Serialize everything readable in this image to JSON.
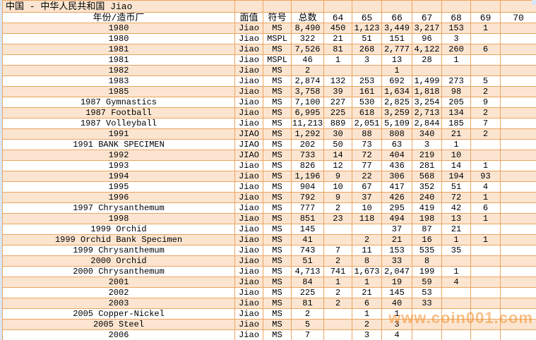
{
  "title": "中国 - 中华人民共和国 Jiao",
  "watermark": "www.coin001.com",
  "colors": {
    "border": "#ECA460",
    "row_peach": "#FCE5D0",
    "row_white": "#FFFFFF",
    "page_background": "#D9E6F3",
    "watermark": "#F29027",
    "text": "#000000"
  },
  "table": {
    "columns": [
      "年份/造币厂",
      "面值",
      "符号",
      "总数",
      "64",
      "65",
      "66",
      "67",
      "68",
      "69",
      "70"
    ],
    "rows": [
      [
        "1980",
        "Jiao",
        "MS",
        "8,490",
        "450",
        "1,123",
        "3,449",
        "3,217",
        "153",
        "1",
        ""
      ],
      [
        "1980",
        "Jiao",
        "MSPL",
        "322",
        "21",
        "51",
        "151",
        "96",
        "3",
        "",
        ""
      ],
      [
        "1981",
        "Jiao",
        "MS",
        "7,526",
        "81",
        "268",
        "2,777",
        "4,122",
        "260",
        "6",
        ""
      ],
      [
        "1981",
        "Jiao",
        "MSPL",
        "46",
        "1",
        "3",
        "13",
        "28",
        "1",
        "",
        ""
      ],
      [
        "1982",
        "Jiao",
        "MS",
        "2",
        "",
        "",
        "1",
        "",
        "",
        "",
        ""
      ],
      [
        "1983",
        "Jiao",
        "MS",
        "2,874",
        "132",
        "253",
        "692",
        "1,499",
        "273",
        "5",
        ""
      ],
      [
        "1985",
        "Jiao",
        "MS",
        "3,758",
        "39",
        "161",
        "1,634",
        "1,818",
        "98",
        "2",
        ""
      ],
      [
        "1987 Gymnastics",
        "Jiao",
        "MS",
        "7,100",
        "227",
        "530",
        "2,825",
        "3,254",
        "205",
        "9",
        ""
      ],
      [
        "1987 Football",
        "Jiao",
        "MS",
        "6,995",
        "225",
        "618",
        "3,259",
        "2,713",
        "134",
        "2",
        ""
      ],
      [
        "1987 Volleyball",
        "Jiao",
        "MS",
        "11,213",
        "889",
        "2,051",
        "5,109",
        "2,844",
        "185",
        "7",
        ""
      ],
      [
        "1991",
        "JIAO",
        "MS",
        "1,292",
        "30",
        "88",
        "808",
        "340",
        "21",
        "2",
        ""
      ],
      [
        "1991 BANK SPECIMEN",
        "JIAO",
        "MS",
        "202",
        "50",
        "73",
        "63",
        "3",
        "1",
        "",
        ""
      ],
      [
        "1992",
        "JIAO",
        "MS",
        "733",
        "14",
        "72",
        "404",
        "219",
        "10",
        "",
        ""
      ],
      [
        "1993",
        "Jiao",
        "MS",
        "826",
        "12",
        "77",
        "436",
        "281",
        "14",
        "1",
        ""
      ],
      [
        "1994",
        "Jiao",
        "MS",
        "1,196",
        "9",
        "22",
        "306",
        "568",
        "194",
        "93",
        ""
      ],
      [
        "1995",
        "Jiao",
        "MS",
        "904",
        "10",
        "67",
        "417",
        "352",
        "51",
        "4",
        ""
      ],
      [
        "1996",
        "Jiao",
        "MS",
        "792",
        "9",
        "37",
        "426",
        "240",
        "72",
        "1",
        ""
      ],
      [
        "1997 Chrysanthemum",
        "Jiao",
        "MS",
        "777",
        "2",
        "10",
        "295",
        "419",
        "42",
        "6",
        ""
      ],
      [
        "1998",
        "Jiao",
        "MS",
        "851",
        "23",
        "118",
        "494",
        "198",
        "13",
        "1",
        ""
      ],
      [
        "1999 Orchid",
        "Jiao",
        "MS",
        "145",
        "",
        "",
        "37",
        "87",
        "21",
        "",
        ""
      ],
      [
        "1999 Orchid Bank Specimen",
        "Jiao",
        "MS",
        "41",
        "",
        "2",
        "21",
        "16",
        "1",
        "1",
        ""
      ],
      [
        "1999 Chrysanthemum",
        "Jiao",
        "MS",
        "743",
        "7",
        "11",
        "153",
        "535",
        "35",
        "",
        ""
      ],
      [
        "2000 Orchid",
        "Jiao",
        "MS",
        "51",
        "2",
        "8",
        "33",
        "8",
        "",
        "",
        ""
      ],
      [
        "2000 Chrysanthemum",
        "Jiao",
        "MS",
        "4,713",
        "741",
        "1,673",
        "2,047",
        "199",
        "1",
        "",
        ""
      ],
      [
        "2001",
        "Jiao",
        "MS",
        "84",
        "1",
        "1",
        "19",
        "59",
        "4",
        "",
        ""
      ],
      [
        "2002",
        "Jiao",
        "MS",
        "225",
        "2",
        "21",
        "145",
        "53",
        "",
        "",
        ""
      ],
      [
        "2003",
        "Jiao",
        "MS",
        "81",
        "2",
        "6",
        "40",
        "33",
        "",
        "",
        ""
      ],
      [
        "2005 Copper-Nickel",
        "Jiao",
        "MS",
        "2",
        "",
        "1",
        "1",
        "",
        "",
        "",
        ""
      ],
      [
        "2005 Steel",
        "Jiao",
        "MS",
        "5",
        "",
        "2",
        "3",
        "",
        "",
        "",
        ""
      ],
      [
        "2006",
        "Jiao",
        "MS",
        "7",
        "",
        "3",
        "4",
        "",
        "",
        "",
        ""
      ]
    ]
  }
}
